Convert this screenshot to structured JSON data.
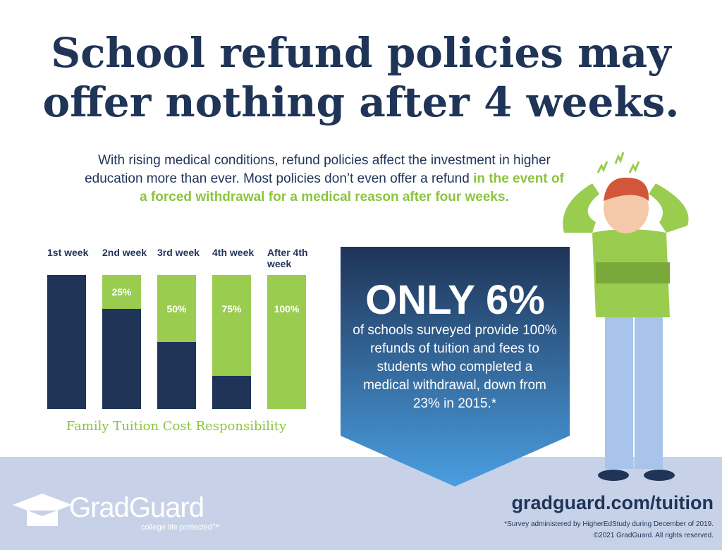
{
  "title": "School refund policies may offer nothing after 4 weeks.",
  "intro": {
    "text": "With rising medical conditions, refund policies affect the investment in higher education more than ever.  Most policies don’t even offer a refund",
    "highlight": "in the event of a forced withdrawal for a medical reason after four weeks."
  },
  "chart_data": {
    "type": "stacked-bar",
    "categories": [
      "1st week",
      "2nd week",
      "3rd week",
      "4th week",
      "After 4th week"
    ],
    "series": [
      {
        "color": "#1f3457",
        "values": [
          100,
          75,
          50,
          25,
          0
        ]
      },
      {
        "color": "#9acd4f",
        "values": [
          0,
          25,
          50,
          75,
          100
        ],
        "value_labels": [
          null,
          "25%",
          "50%",
          "75%",
          "100%"
        ]
      }
    ],
    "caption": "Family Tuition Cost Responsibility"
  },
  "callout": {
    "headline": "ONLY 6%",
    "text": "of schools surveyed provide 100% refunds of tuition and fees to students who completed a medical withdrawal, down from 23% in 2015.*"
  },
  "footer": {
    "logo": "GradGuard",
    "tagline": "college life protected™",
    "url": "gradguard.com/tuition",
    "note": "*Survey administered by HigherEdStudy during December of 2019.",
    "copyright": "©2021 GradGuard. All rights reserved."
  }
}
